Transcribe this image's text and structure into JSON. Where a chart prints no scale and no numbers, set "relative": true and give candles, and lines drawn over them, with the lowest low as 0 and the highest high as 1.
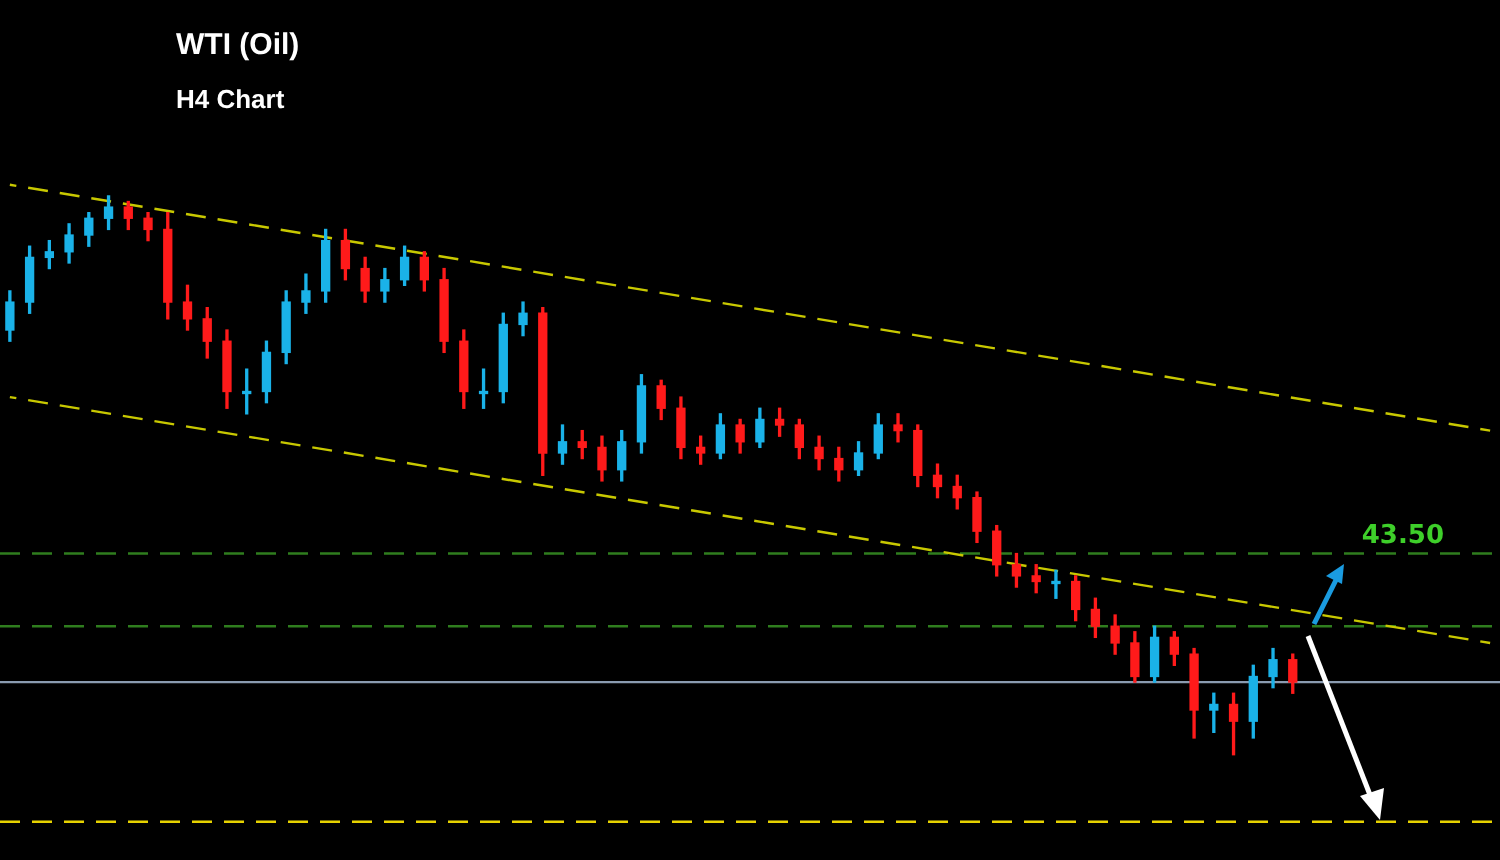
{
  "chart_data": {
    "type": "candlestick",
    "title": "WTI (Oil)",
    "subtitle": "H4 Chart",
    "relative": true,
    "categories": [
      null,
      null,
      null,
      null,
      null,
      null,
      null,
      null,
      null,
      null,
      null,
      null,
      null,
      null,
      null,
      null,
      null,
      null,
      null,
      null,
      null,
      null,
      null,
      null,
      null,
      null,
      null,
      null,
      null,
      null,
      null,
      null,
      null,
      null,
      null,
      null,
      null,
      null,
      null,
      null,
      null,
      null,
      null,
      null,
      null,
      null,
      null,
      null,
      null,
      null,
      null,
      null,
      null,
      null,
      null,
      null,
      null,
      null,
      null,
      null,
      null,
      null,
      null,
      null,
      null,
      null,
      null,
      null,
      null,
      null,
      null,
      null,
      null,
      null,
      null,
      null
    ],
    "ohlc": [
      [
        0.76,
        0.83,
        0.74,
        0.81
      ],
      [
        0.81,
        0.91,
        0.79,
        0.89
      ],
      [
        0.89,
        0.92,
        0.87,
        0.9
      ],
      [
        0.9,
        0.95,
        0.88,
        0.93
      ],
      [
        0.93,
        0.97,
        0.91,
        0.96
      ],
      [
        0.96,
        1.0,
        0.94,
        0.98
      ],
      [
        0.98,
        0.99,
        0.94,
        0.96
      ],
      [
        0.96,
        0.97,
        0.92,
        0.94
      ],
      [
        0.94,
        0.97,
        0.78,
        0.81
      ],
      [
        0.81,
        0.84,
        0.76,
        0.78
      ],
      [
        0.78,
        0.8,
        0.71,
        0.74
      ],
      [
        0.74,
        0.76,
        0.62,
        0.65
      ],
      [
        0.65,
        0.69,
        0.61,
        0.65
      ],
      [
        0.65,
        0.74,
        0.63,
        0.72
      ],
      [
        0.72,
        0.83,
        0.7,
        0.81
      ],
      [
        0.81,
        0.86,
        0.79,
        0.83
      ],
      [
        0.83,
        0.94,
        0.81,
        0.92
      ],
      [
        0.92,
        0.94,
        0.85,
        0.87
      ],
      [
        0.87,
        0.89,
        0.81,
        0.83
      ],
      [
        0.83,
        0.87,
        0.81,
        0.85
      ],
      [
        0.85,
        0.91,
        0.84,
        0.89
      ],
      [
        0.89,
        0.9,
        0.83,
        0.85
      ],
      [
        0.85,
        0.87,
        0.72,
        0.74
      ],
      [
        0.74,
        0.76,
        0.62,
        0.65
      ],
      [
        0.65,
        0.69,
        0.62,
        0.65
      ],
      [
        0.65,
        0.79,
        0.63,
        0.77
      ],
      [
        0.77,
        0.81,
        0.75,
        0.79
      ],
      [
        0.79,
        0.8,
        0.5,
        0.54
      ],
      [
        0.54,
        0.59,
        0.52,
        0.56
      ],
      [
        0.56,
        0.58,
        0.53,
        0.55
      ],
      [
        0.55,
        0.57,
        0.49,
        0.51
      ],
      [
        0.51,
        0.58,
        0.49,
        0.56
      ],
      [
        0.56,
        0.68,
        0.54,
        0.66
      ],
      [
        0.66,
        0.67,
        0.6,
        0.62
      ],
      [
        0.62,
        0.64,
        0.53,
        0.55
      ],
      [
        0.55,
        0.57,
        0.52,
        0.54
      ],
      [
        0.54,
        0.61,
        0.53,
        0.59
      ],
      [
        0.59,
        0.6,
        0.54,
        0.56
      ],
      [
        0.56,
        0.62,
        0.55,
        0.6
      ],
      [
        0.6,
        0.62,
        0.57,
        0.59
      ],
      [
        0.59,
        0.6,
        0.53,
        0.55
      ],
      [
        0.55,
        0.57,
        0.51,
        0.53
      ],
      [
        0.53,
        0.55,
        0.49,
        0.51
      ],
      [
        0.51,
        0.56,
        0.5,
        0.54
      ],
      [
        0.54,
        0.61,
        0.53,
        0.59
      ],
      [
        0.59,
        0.61,
        0.56,
        0.58
      ],
      [
        0.58,
        0.59,
        0.48,
        0.5
      ],
      [
        0.5,
        0.52,
        0.46,
        0.48
      ],
      [
        0.48,
        0.5,
        0.44,
        0.46
      ],
      [
        0.46,
        0.47,
        0.38,
        0.4
      ],
      [
        0.4,
        0.41,
        0.32,
        0.34
      ],
      [
        0.34,
        0.36,
        0.3,
        0.32
      ],
      [
        0.32,
        0.34,
        0.29,
        0.31
      ],
      [
        0.31,
        0.33,
        0.28,
        0.31
      ],
      [
        0.31,
        0.32,
        0.24,
        0.26
      ],
      [
        0.26,
        0.28,
        0.21,
        0.23
      ],
      [
        0.23,
        0.25,
        0.18,
        0.2
      ],
      [
        0.2,
        0.22,
        0.13,
        0.14
      ],
      [
        0.14,
        0.23,
        0.13,
        0.21
      ],
      [
        0.21,
        0.22,
        0.16,
        0.18
      ],
      [
        0.18,
        0.19,
        0.03,
        0.08
      ],
      [
        0.08,
        0.11,
        0.04,
        0.09
      ],
      [
        0.09,
        0.11,
        0.0,
        0.06
      ],
      [
        0.06,
        0.16,
        0.03,
        0.14
      ],
      [
        0.14,
        0.19,
        0.12,
        0.17
      ],
      [
        0.17,
        0.18,
        0.11,
        0.13
      ],
      null,
      null,
      null,
      null,
      null,
      null,
      null,
      null,
      null,
      null
    ],
    "series": [
      {
        "type": "line",
        "color": "#c8c800",
        "line_style": "dashed",
        "values": [
          1.02,
          null,
          null,
          null,
          null,
          null,
          null,
          null,
          null,
          null,
          null,
          null,
          null,
          null,
          null,
          null,
          null,
          null,
          null,
          null,
          null,
          null,
          null,
          null,
          null,
          null,
          null,
          null,
          null,
          null,
          null,
          null,
          null,
          null,
          null,
          null,
          null,
          null,
          null,
          null,
          null,
          null,
          null,
          null,
          null,
          null,
          null,
          null,
          null,
          null,
          null,
          null,
          null,
          null,
          null,
          null,
          null,
          null,
          null,
          null,
          null,
          null,
          null,
          null,
          null,
          null,
          null,
          null,
          null,
          null,
          null,
          null,
          null,
          null,
          null,
          0.58
        ]
      },
      {
        "type": "line",
        "color": "#c8c800",
        "line_style": "dashed",
        "values": [
          0.64,
          null,
          null,
          null,
          null,
          null,
          null,
          null,
          null,
          null,
          null,
          null,
          null,
          null,
          null,
          null,
          null,
          null,
          null,
          null,
          null,
          null,
          null,
          null,
          null,
          null,
          null,
          null,
          null,
          null,
          null,
          null,
          null,
          null,
          null,
          null,
          null,
          null,
          null,
          null,
          null,
          null,
          null,
          null,
          null,
          null,
          null,
          null,
          null,
          null,
          null,
          null,
          null,
          null,
          null,
          null,
          null,
          null,
          null,
          null,
          null,
          null,
          null,
          null,
          null,
          null,
          null,
          null,
          null,
          null,
          null,
          null,
          null,
          null,
          null,
          0.2
        ]
      }
    ],
    "ref_lines": [
      {
        "axis": "y",
        "value": 0.36,
        "color": "#2f7d1e",
        "line_style": "dashed"
      },
      {
        "axis": "y",
        "value": 0.23,
        "color": "#2f7d1e",
        "line_style": "dashed"
      },
      {
        "axis": "y",
        "value": 0.13,
        "color": "#8a9bb0",
        "line_style": "solid"
      },
      {
        "axis": "y",
        "value": -0.12,
        "color": "#e6d200",
        "line_style": "dashed"
      }
    ],
    "annotations": [
      "43.50"
    ],
    "legend": false
  }
}
